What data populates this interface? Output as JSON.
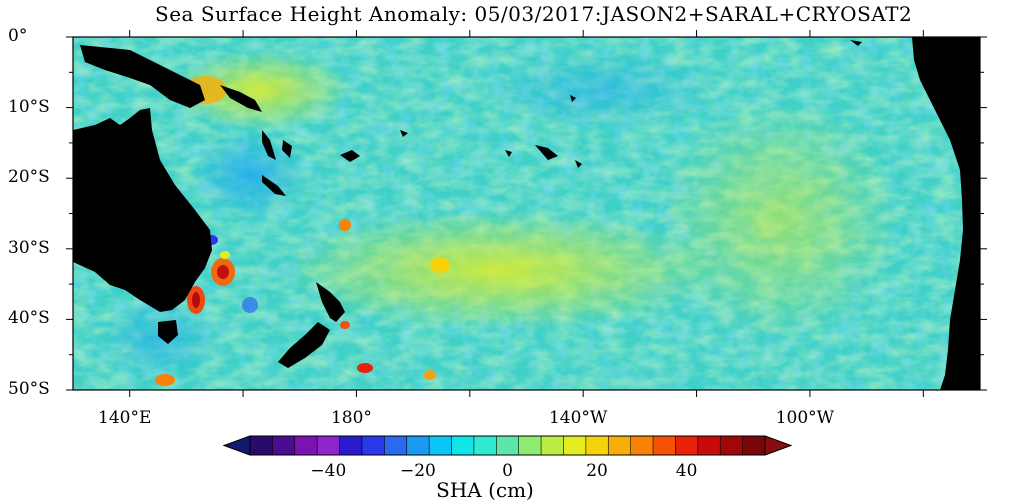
{
  "title": "Sea Surface Height Anomaly: 05/03/2017:JASON2+SARAL+CRYOSAT2",
  "lat_labels": [
    "0°",
    "10°S",
    "20°S",
    "30°S",
    "40°S",
    "50°S"
  ],
  "lon_labels": [
    "140°E",
    "180°",
    "140°W",
    "100°W"
  ],
  "colorbar": {
    "title": "SHA (cm)",
    "ticks": [
      "−40",
      "−20",
      "0",
      "20",
      "40"
    ],
    "colors": [
      "#2a0a6a",
      "#4b0d8f",
      "#7a13b0",
      "#8f25c9",
      "#2a1ad0",
      "#2a3ae8",
      "#2a6af0",
      "#1a9af2",
      "#0ac6f4",
      "#10e6e8",
      "#30ead0",
      "#5ee6a8",
      "#90ea70",
      "#bcec44",
      "#e4ec20",
      "#f6d20a",
      "#f8ae06",
      "#f88206",
      "#f45206",
      "#e82208",
      "#c80a0a",
      "#a00808",
      "#780606"
    ],
    "under_color": "#111a6e",
    "over_color": "#8a0c10"
  },
  "map": {
    "ocean_base": "#3fd0c8",
    "land": "#000000"
  }
}
